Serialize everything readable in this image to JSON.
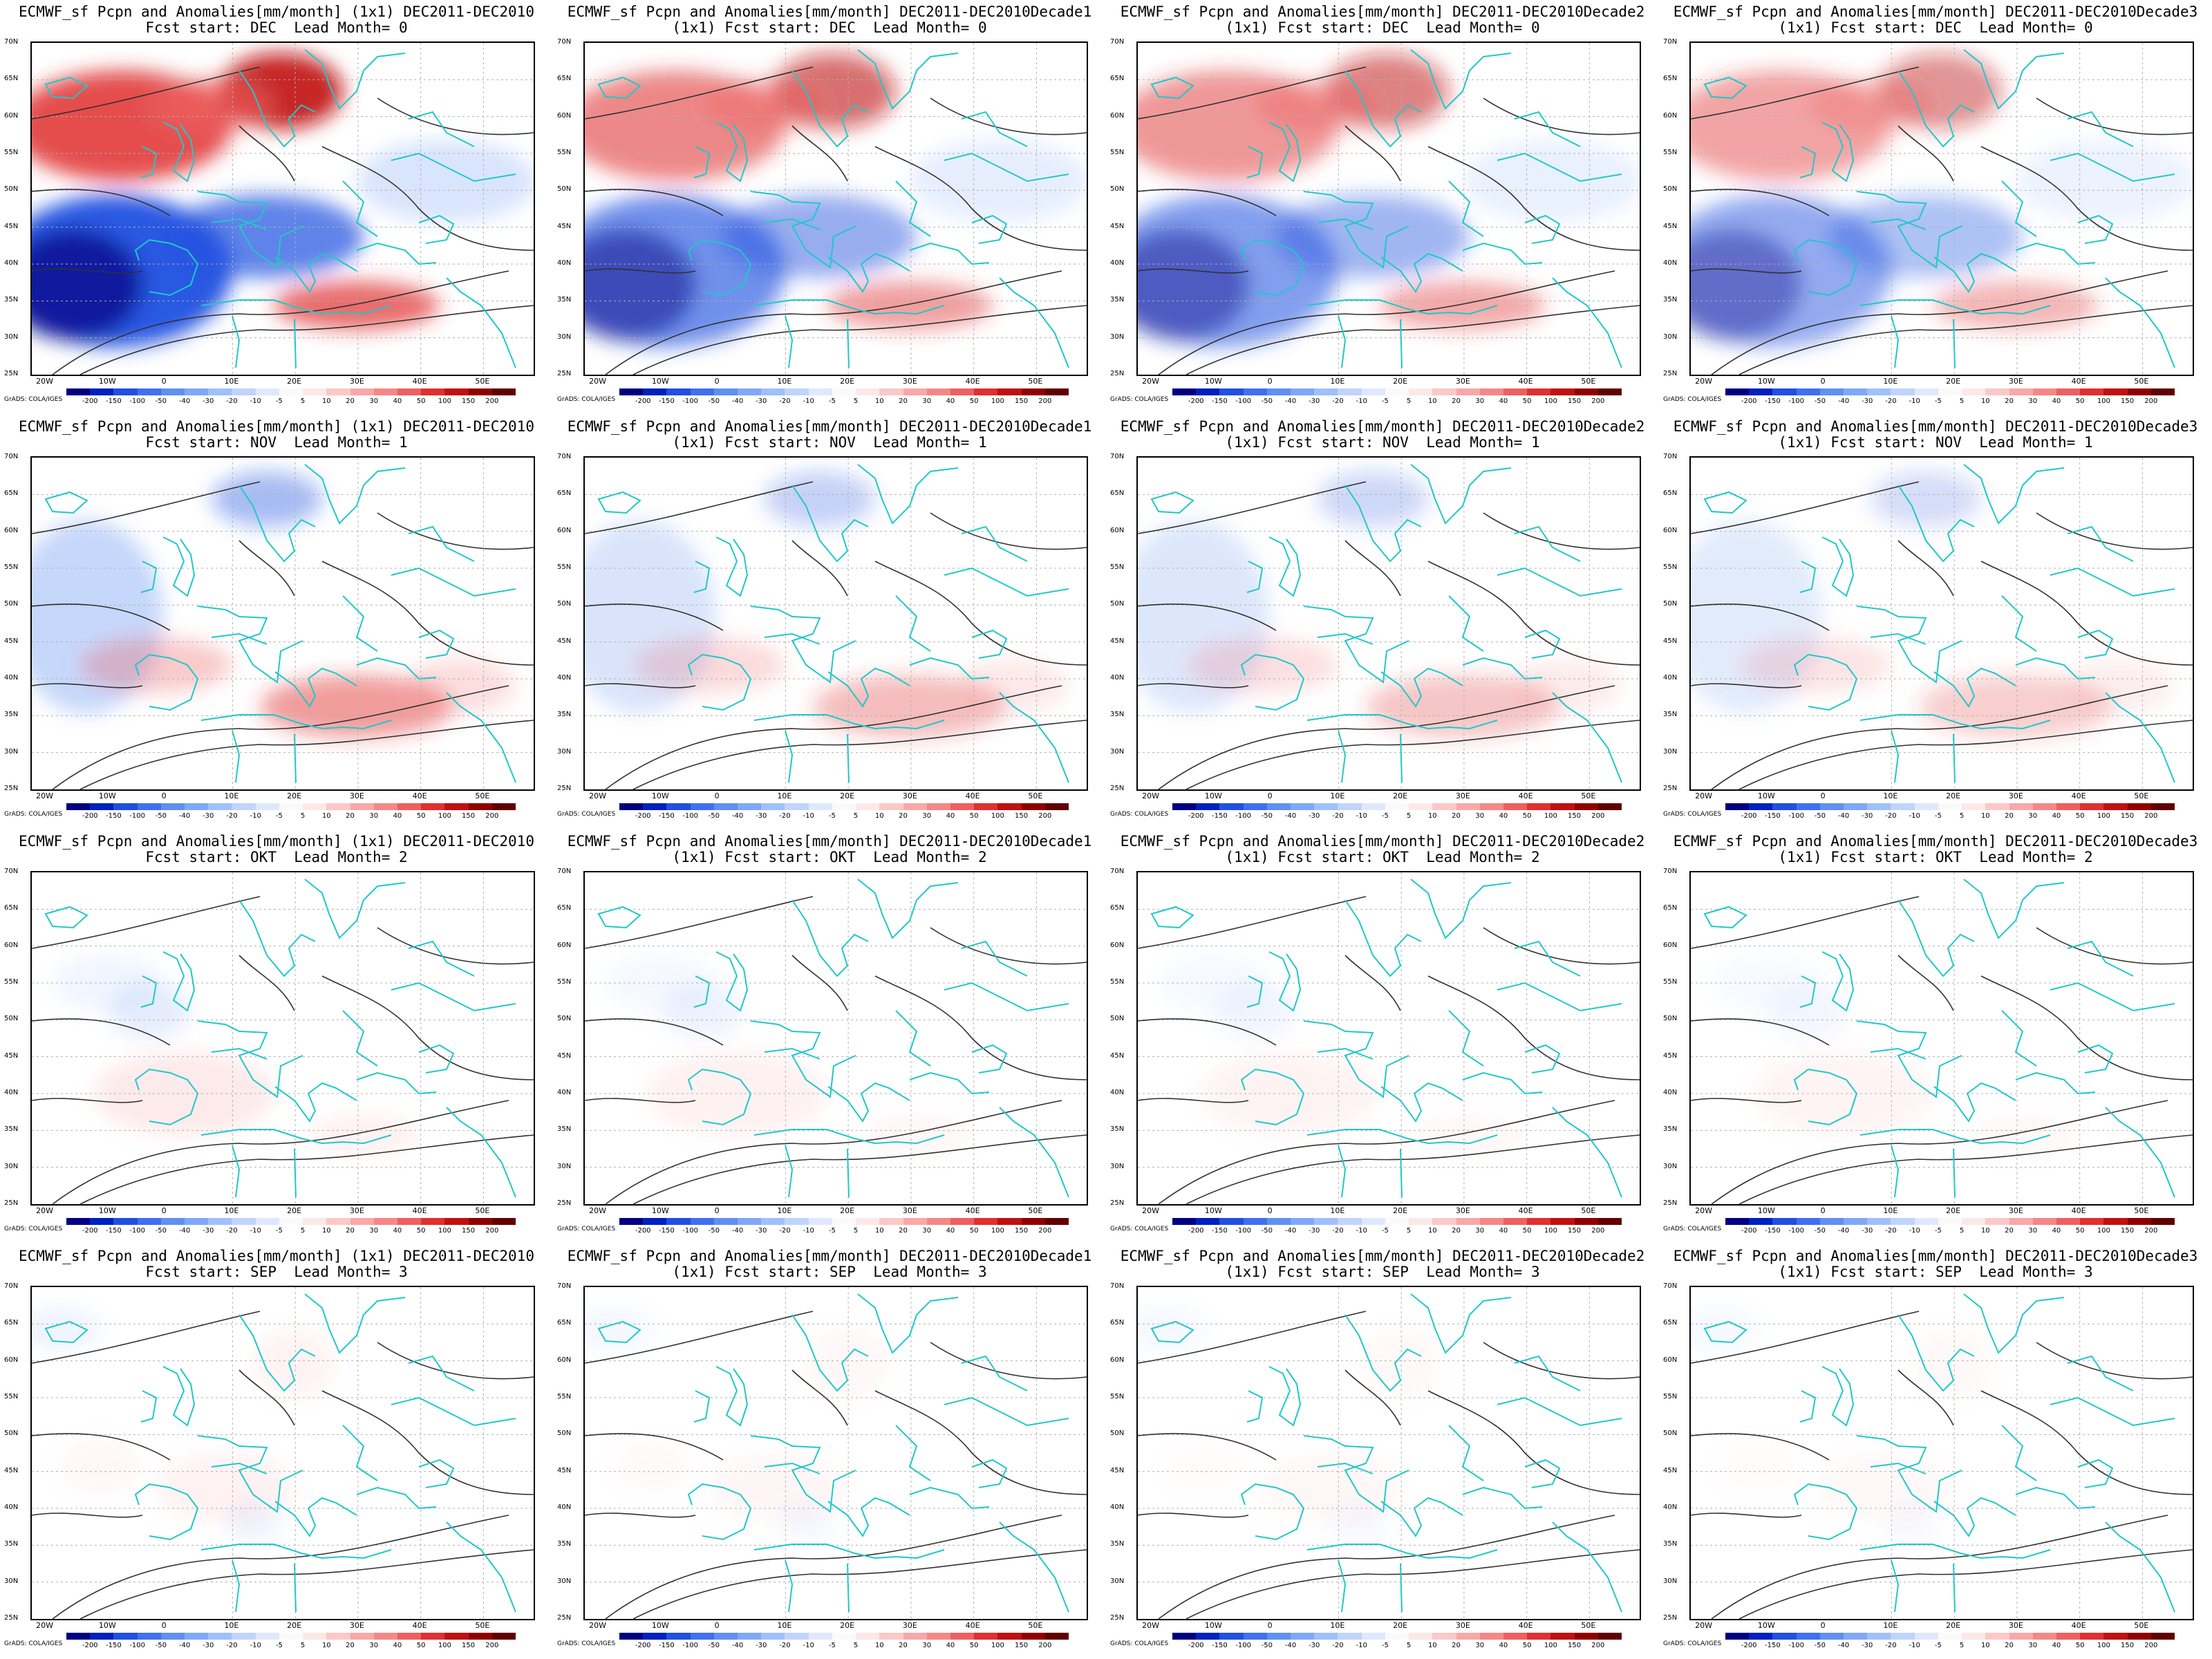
{
  "title_common": "ECMWF_sf Pcpn and Anomalies[mm/month] DEC2011-DEC2010",
  "res": "(1x1)",
  "columns": [
    "",
    "Decade1",
    "Decade2",
    "Decade3"
  ],
  "rows": [
    {
      "start": "DEC",
      "lead": "0",
      "intensity": 1.0
    },
    {
      "start": "NOV",
      "lead": "1",
      "intensity": 0.55
    },
    {
      "start": "OKT",
      "lead": "2",
      "intensity": 0.32
    },
    {
      "start": "SEP",
      "lead": "3",
      "intensity": 0.22
    }
  ],
  "labels": {
    "fcst_start": "Fcst start:",
    "lead_month": "Lead Month=",
    "credit": "GrADS: COLA/IGES"
  },
  "lat_ticks": [
    "70N",
    "65N",
    "60N",
    "55N",
    "50N",
    "45N",
    "40N",
    "35N",
    "30N",
    "25N"
  ],
  "lon_ticks": [
    "20W",
    "10W",
    "0",
    "10E",
    "20E",
    "30E",
    "40E",
    "50E"
  ],
  "colorbar": {
    "levels": [
      "-200",
      "-150",
      "-100",
      "-50",
      "-40",
      "-30",
      "-20",
      "-10",
      "-5",
      "5",
      "10",
      "20",
      "30",
      "40",
      "50",
      "100",
      "150",
      "200"
    ],
    "colors": [
      "#000080",
      "#0020c0",
      "#2050e0",
      "#4070f0",
      "#6090f0",
      "#80a8f8",
      "#a0c0fc",
      "#c0d4fc",
      "#e0e8fe",
      "#ffffff",
      "#fde8e8",
      "#fcc8c8",
      "#f8a8a8",
      "#f48888",
      "#ee6060",
      "#e03030",
      "#c01010",
      "#900000",
      "#600000"
    ]
  },
  "colors": {
    "coast": "#20c8c8",
    "contour": "#303030",
    "grid": "#b0b0b0"
  }
}
